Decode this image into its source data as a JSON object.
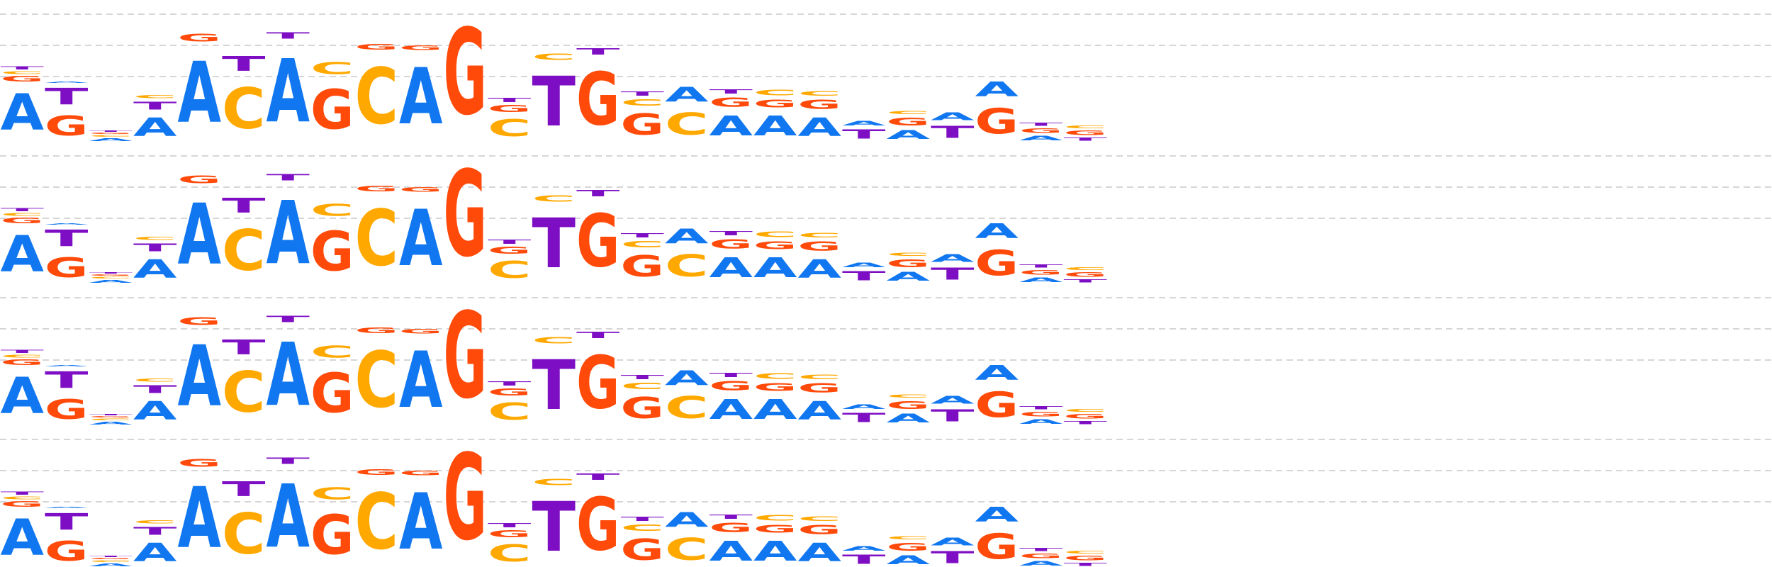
{
  "colors": {
    "A": "#1177f0",
    "C": "#ffa800",
    "G": "#ff4a0a",
    "T": "#7d0ec4"
  },
  "chart_data": {
    "type": "sequence-logo",
    "rows": 4,
    "tracks": [
      {
        "name": "row-1",
        "letters": [
          [
            [
              "T",
              0.05
            ],
            [
              "C",
              0.04
            ],
            [
              "G",
              0.08
            ],
            [
              "A",
              0.55
            ]
          ],
          [
            [
              "A",
              0.02
            ],
            [
              "T",
              0.25
            ],
            [
              "G",
              0.3
            ]
          ],
          [
            [
              "T",
              0.02
            ],
            [
              "G",
              0.02
            ],
            [
              "C",
              0.03
            ],
            [
              "A",
              0.04
            ]
          ],
          [
            [
              "C",
              0.05
            ],
            [
              "T",
              0.12
            ],
            [
              "A",
              0.28
            ]
          ],
          [
            [
              "G",
              0.12
            ],
            [
              "A",
              0.92
            ]
          ],
          [
            [
              "T",
              0.22
            ],
            [
              "C",
              0.62
            ]
          ],
          [
            [
              "T",
              0.1
            ],
            [
              "A",
              0.95
            ]
          ],
          [
            [
              "C",
              0.18
            ],
            [
              "G",
              0.6
            ]
          ],
          [
            [
              "G",
              0.08
            ],
            [
              "C",
              0.85
            ]
          ],
          [
            [
              "G",
              0.07
            ],
            [
              "A",
              0.85
            ]
          ],
          [
            [
              "G",
              1.3
            ]
          ],
          [
            [
              "T",
              0.06
            ],
            [
              "G",
              0.1
            ],
            [
              "C",
              0.26
            ]
          ],
          [
            [
              "C",
              0.1
            ],
            [
              "T",
              0.75
            ]
          ],
          [
            [
              "T",
              0.1
            ],
            [
              "G",
              0.8
            ]
          ],
          [
            [
              "T",
              0.06
            ],
            [
              "C",
              0.1
            ],
            [
              "G",
              0.32
            ]
          ],
          [
            [
              "A",
              0.22
            ],
            [
              "C",
              0.33
            ]
          ],
          [
            [
              "T",
              0.06
            ],
            [
              "G",
              0.14
            ],
            [
              "A",
              0.3
            ]
          ],
          [
            [
              "C",
              0.08
            ],
            [
              "G",
              0.12
            ],
            [
              "A",
              0.3
            ]
          ],
          [
            [
              "C",
              0.07
            ],
            [
              "G",
              0.14
            ],
            [
              "A",
              0.28
            ]
          ],
          [
            [
              "A",
              0.07
            ],
            [
              "T",
              0.14
            ]
          ],
          [
            [
              "C",
              0.05
            ],
            [
              "G",
              0.12
            ],
            [
              "A",
              0.13
            ]
          ],
          [
            [
              "A",
              0.12
            ],
            [
              "T",
              0.18
            ]
          ],
          [
            [
              "A",
              0.22
            ],
            [
              "G",
              0.38
            ]
          ],
          [
            [
              "T",
              0.05
            ],
            [
              "G",
              0.07
            ],
            [
              "A",
              0.07
            ]
          ],
          [
            [
              "C",
              0.04
            ],
            [
              "G",
              0.07
            ],
            [
              "T",
              0.05
            ]
          ]
        ]
      },
      {
        "name": "row-2",
        "letters": [
          [
            [
              "T",
              0.05
            ],
            [
              "C",
              0.04
            ],
            [
              "G",
              0.08
            ],
            [
              "A",
              0.55
            ]
          ],
          [
            [
              "A",
              0.02
            ],
            [
              "T",
              0.25
            ],
            [
              "G",
              0.3
            ]
          ],
          [
            [
              "T",
              0.02
            ],
            [
              "G",
              0.02
            ],
            [
              "C",
              0.03
            ],
            [
              "A",
              0.04
            ]
          ],
          [
            [
              "C",
              0.05
            ],
            [
              "T",
              0.12
            ],
            [
              "A",
              0.28
            ]
          ],
          [
            [
              "G",
              0.12
            ],
            [
              "A",
              0.92
            ]
          ],
          [
            [
              "T",
              0.22
            ],
            [
              "C",
              0.62
            ]
          ],
          [
            [
              "T",
              0.1
            ],
            [
              "A",
              0.95
            ]
          ],
          [
            [
              "C",
              0.18
            ],
            [
              "G",
              0.6
            ]
          ],
          [
            [
              "G",
              0.08
            ],
            [
              "C",
              0.85
            ]
          ],
          [
            [
              "G",
              0.07
            ],
            [
              "A",
              0.85
            ]
          ],
          [
            [
              "G",
              1.3
            ]
          ],
          [
            [
              "T",
              0.06
            ],
            [
              "G",
              0.1
            ],
            [
              "C",
              0.26
            ]
          ],
          [
            [
              "C",
              0.1
            ],
            [
              "T",
              0.75
            ]
          ],
          [
            [
              "T",
              0.1
            ],
            [
              "G",
              0.8
            ]
          ],
          [
            [
              "T",
              0.06
            ],
            [
              "C",
              0.1
            ],
            [
              "G",
              0.32
            ]
          ],
          [
            [
              "A",
              0.22
            ],
            [
              "C",
              0.33
            ]
          ],
          [
            [
              "T",
              0.06
            ],
            [
              "G",
              0.14
            ],
            [
              "A",
              0.3
            ]
          ],
          [
            [
              "C",
              0.08
            ],
            [
              "G",
              0.12
            ],
            [
              "A",
              0.3
            ]
          ],
          [
            [
              "C",
              0.07
            ],
            [
              "G",
              0.14
            ],
            [
              "A",
              0.28
            ]
          ],
          [
            [
              "A",
              0.07
            ],
            [
              "T",
              0.14
            ]
          ],
          [
            [
              "C",
              0.05
            ],
            [
              "G",
              0.12
            ],
            [
              "A",
              0.13
            ]
          ],
          [
            [
              "A",
              0.12
            ],
            [
              "T",
              0.18
            ]
          ],
          [
            [
              "A",
              0.22
            ],
            [
              "G",
              0.38
            ]
          ],
          [
            [
              "T",
              0.05
            ],
            [
              "G",
              0.07
            ],
            [
              "A",
              0.07
            ]
          ],
          [
            [
              "C",
              0.04
            ],
            [
              "G",
              0.07
            ],
            [
              "T",
              0.05
            ]
          ]
        ]
      },
      {
        "name": "row-3",
        "letters": [
          [
            [
              "T",
              0.05
            ],
            [
              "C",
              0.04
            ],
            [
              "G",
              0.08
            ],
            [
              "A",
              0.55
            ]
          ],
          [
            [
              "A",
              0.02
            ],
            [
              "T",
              0.25
            ],
            [
              "G",
              0.3
            ]
          ],
          [
            [
              "T",
              0.02
            ],
            [
              "G",
              0.02
            ],
            [
              "C",
              0.03
            ],
            [
              "A",
              0.04
            ]
          ],
          [
            [
              "C",
              0.05
            ],
            [
              "T",
              0.12
            ],
            [
              "A",
              0.28
            ]
          ],
          [
            [
              "G",
              0.12
            ],
            [
              "A",
              0.92
            ]
          ],
          [
            [
              "T",
              0.22
            ],
            [
              "C",
              0.62
            ]
          ],
          [
            [
              "T",
              0.1
            ],
            [
              "A",
              0.95
            ]
          ],
          [
            [
              "C",
              0.18
            ],
            [
              "G",
              0.6
            ]
          ],
          [
            [
              "G",
              0.08
            ],
            [
              "C",
              0.85
            ]
          ],
          [
            [
              "G",
              0.07
            ],
            [
              "A",
              0.85
            ]
          ],
          [
            [
              "G",
              1.3
            ]
          ],
          [
            [
              "T",
              0.06
            ],
            [
              "G",
              0.1
            ],
            [
              "C",
              0.26
            ]
          ],
          [
            [
              "C",
              0.1
            ],
            [
              "T",
              0.75
            ]
          ],
          [
            [
              "T",
              0.1
            ],
            [
              "G",
              0.8
            ]
          ],
          [
            [
              "T",
              0.06
            ],
            [
              "C",
              0.1
            ],
            [
              "G",
              0.32
            ]
          ],
          [
            [
              "A",
              0.22
            ],
            [
              "C",
              0.33
            ]
          ],
          [
            [
              "T",
              0.06
            ],
            [
              "G",
              0.14
            ],
            [
              "A",
              0.3
            ]
          ],
          [
            [
              "C",
              0.08
            ],
            [
              "G",
              0.12
            ],
            [
              "A",
              0.3
            ]
          ],
          [
            [
              "C",
              0.07
            ],
            [
              "G",
              0.14
            ],
            [
              "A",
              0.28
            ]
          ],
          [
            [
              "A",
              0.07
            ],
            [
              "T",
              0.14
            ]
          ],
          [
            [
              "C",
              0.05
            ],
            [
              "G",
              0.12
            ],
            [
              "A",
              0.13
            ]
          ],
          [
            [
              "A",
              0.12
            ],
            [
              "T",
              0.18
            ]
          ],
          [
            [
              "A",
              0.22
            ],
            [
              "G",
              0.38
            ]
          ],
          [
            [
              "T",
              0.05
            ],
            [
              "G",
              0.07
            ],
            [
              "A",
              0.07
            ]
          ],
          [
            [
              "C",
              0.04
            ],
            [
              "G",
              0.07
            ],
            [
              "T",
              0.05
            ]
          ]
        ]
      },
      {
        "name": "row-4",
        "letters": [
          [
            [
              "T",
              0.05
            ],
            [
              "C",
              0.04
            ],
            [
              "G",
              0.08
            ],
            [
              "A",
              0.55
            ]
          ],
          [
            [
              "A",
              0.02
            ],
            [
              "T",
              0.25
            ],
            [
              "G",
              0.3
            ]
          ],
          [
            [
              "T",
              0.02
            ],
            [
              "G",
              0.02
            ],
            [
              "C",
              0.03
            ],
            [
              "A",
              0.04
            ]
          ],
          [
            [
              "C",
              0.05
            ],
            [
              "T",
              0.12
            ],
            [
              "A",
              0.28
            ]
          ],
          [
            [
              "G",
              0.12
            ],
            [
              "A",
              0.92
            ]
          ],
          [
            [
              "T",
              0.22
            ],
            [
              "C",
              0.62
            ]
          ],
          [
            [
              "T",
              0.1
            ],
            [
              "A",
              0.95
            ]
          ],
          [
            [
              "C",
              0.18
            ],
            [
              "G",
              0.6
            ]
          ],
          [
            [
              "G",
              0.08
            ],
            [
              "C",
              0.85
            ]
          ],
          [
            [
              "G",
              0.07
            ],
            [
              "A",
              0.85
            ]
          ],
          [
            [
              "G",
              1.3
            ]
          ],
          [
            [
              "T",
              0.06
            ],
            [
              "G",
              0.1
            ],
            [
              "C",
              0.26
            ]
          ],
          [
            [
              "C",
              0.1
            ],
            [
              "T",
              0.75
            ]
          ],
          [
            [
              "T",
              0.1
            ],
            [
              "G",
              0.8
            ]
          ],
          [
            [
              "T",
              0.06
            ],
            [
              "C",
              0.1
            ],
            [
              "G",
              0.32
            ]
          ],
          [
            [
              "A",
              0.22
            ],
            [
              "C",
              0.33
            ]
          ],
          [
            [
              "T",
              0.06
            ],
            [
              "G",
              0.14
            ],
            [
              "A",
              0.3
            ]
          ],
          [
            [
              "C",
              0.08
            ],
            [
              "G",
              0.12
            ],
            [
              "A",
              0.3
            ]
          ],
          [
            [
              "C",
              0.07
            ],
            [
              "G",
              0.14
            ],
            [
              "A",
              0.28
            ]
          ],
          [
            [
              "A",
              0.07
            ],
            [
              "T",
              0.14
            ]
          ],
          [
            [
              "C",
              0.05
            ],
            [
              "G",
              0.12
            ],
            [
              "A",
              0.13
            ]
          ],
          [
            [
              "A",
              0.12
            ],
            [
              "T",
              0.18
            ]
          ],
          [
            [
              "A",
              0.22
            ],
            [
              "G",
              0.38
            ]
          ],
          [
            [
              "T",
              0.05
            ],
            [
              "G",
              0.07
            ],
            [
              "A",
              0.07
            ]
          ],
          [
            [
              "C",
              0.04
            ],
            [
              "G",
              0.07
            ],
            [
              "T",
              0.05
            ]
          ]
        ]
      }
    ]
  }
}
